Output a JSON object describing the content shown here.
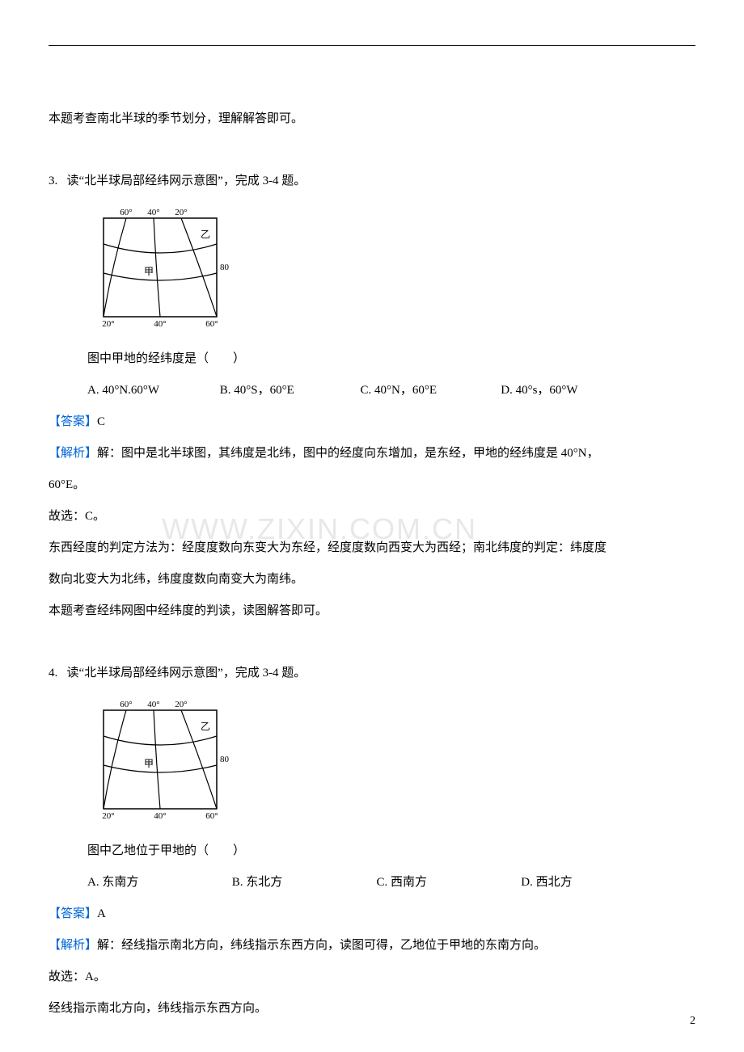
{
  "topRule": true,
  "intro_line": "本题考查南北半球的季节划分，理解解答即可。",
  "q3": {
    "num": "3.",
    "stem": "读“北半球局部经纬网示意图”，完成 3-4 题。",
    "sub_stem": "图中甲地的经纬度是（　　）",
    "options": {
      "a": "A. 40°N.60°W",
      "b": "B. 40°S，60°E",
      "c": "C. 40°N，60°E",
      "d": "D. 40°s，60°W"
    },
    "answer_label": "【答案】",
    "answer": "C",
    "explain_label": "【解析】",
    "explain_l1": "解：图中是北半球图，其纬度是北纬，图中的经度向东增加，是东经，甲地的经纬度是 40°N，",
    "explain_l2": "60°E。",
    "explain_l3": "故选：C。",
    "explain_l4": "东西经度的判定方法为：经度度数向东变大为东经，经度度数向西变大为西经；南北纬度的判定：纬度度",
    "explain_l5": "数向北变大为北纬，纬度度数向南变大为南纬。",
    "explain_l6": "本题考查经纬网图中经纬度的判读，读图解答即可。"
  },
  "q4": {
    "num": "4.",
    "stem": "读“北半球局部经纬网示意图”，完成 3-4 题。",
    "sub_stem": "图中乙地位于甲地的（　　）",
    "options": {
      "a": "A. 东南方",
      "b": "B. 东北方",
      "c": "C. 西南方",
      "d": "D. 西北方"
    },
    "answer_label": "【答案】",
    "answer": "A",
    "explain_label": "【解析】",
    "explain_l1": "解：经线指示南北方向，纬线指示东西方向，读图可得，乙地位于甲地的东南方向。",
    "explain_l2": "故选：A。",
    "explain_l3": "经线指示南北方向，纬线指示东西方向。"
  },
  "diagram": {
    "top_labels": [
      "60°",
      "40°",
      "20°"
    ],
    "bottom_labels": [
      "20°",
      "40°",
      "60°"
    ],
    "right_label": "80",
    "jia": "甲",
    "yi": "乙",
    "stroke": "#000000",
    "text_fontsize": 11
  },
  "watermark": "WWW.ZIXIN.COM.CN",
  "page_number": "2"
}
